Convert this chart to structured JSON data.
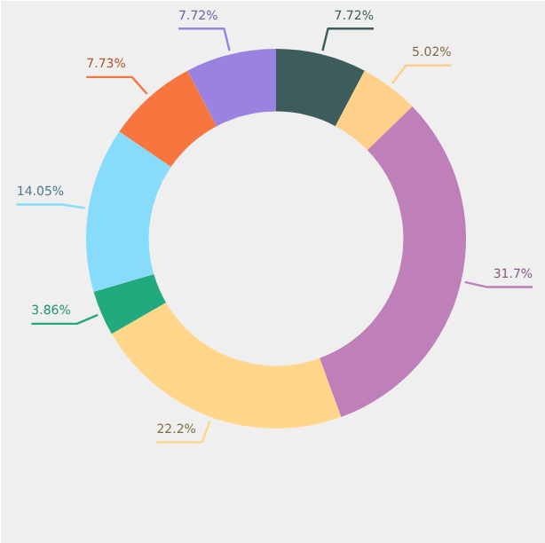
{
  "chart_data": {
    "type": "donut",
    "categories": [
      null,
      null,
      null,
      null,
      null,
      null,
      null,
      null
    ],
    "values": [
      7.72,
      5.02,
      31.7,
      22.2,
      3.86,
      14.05,
      7.73,
      7.72
    ],
    "colors": [
      "#3d5c5c",
      "#ffd08a",
      "#bf7fb8",
      "#ffd68a",
      "#22a97e",
      "#86dcfa",
      "#f7763f",
      "#9a82e0"
    ],
    "value_labels": [
      "7.72%",
      "5.02%",
      "31.7%",
      "22.2%",
      "3.86%",
      "14.05%",
      "7.73%",
      "7.72%"
    ]
  }
}
